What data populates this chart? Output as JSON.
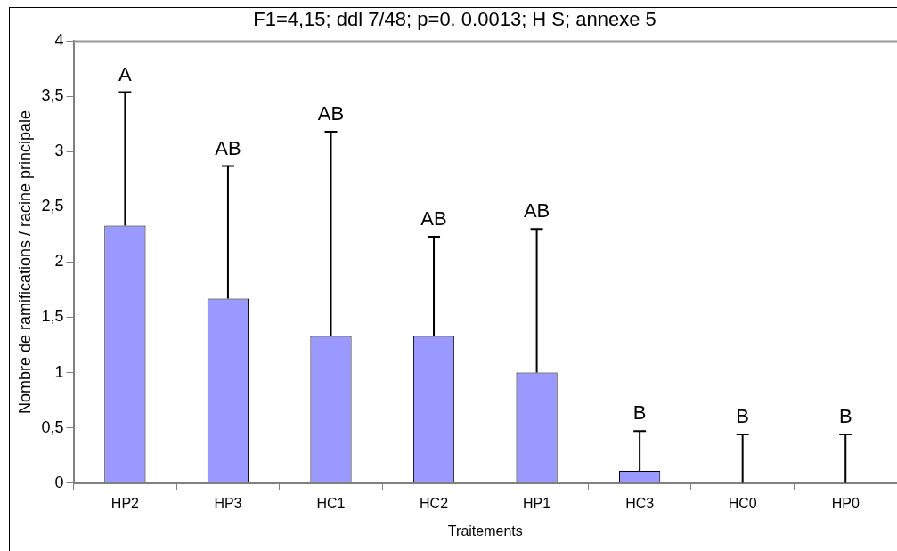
{
  "chart_data": {
    "type": "bar",
    "title": "F1=4,15; ddl 7/48; p=0. 0.0013; H S; annexe 5",
    "xlabel": "Traitements",
    "ylabel": "Nombre de ramifications / racine principale",
    "categories": [
      "HP2",
      "HP3",
      "HC1",
      "HC2",
      "HP1",
      "HC3",
      "HC0",
      "HP0"
    ],
    "values": [
      2.33,
      1.67,
      1.33,
      1.33,
      1.0,
      0.11,
      0,
      0
    ],
    "errors": [
      [
        2.33,
        3.54
      ],
      [
        1.67,
        2.87
      ],
      [
        1.33,
        3.18
      ],
      [
        1.33,
        2.23
      ],
      [
        1.0,
        2.3
      ],
      [
        0.11,
        0.47
      ],
      [
        0,
        0.44
      ],
      [
        0,
        0.44
      ]
    ],
    "color": "#9999ff",
    "ylim": [
      0,
      4
    ],
    "yticks": [
      0,
      {
        "value": 0.5,
        "label": "0,5"
      },
      1,
      {
        "value": 1.5,
        "label": "1,5"
      },
      2,
      {
        "value": 2.5,
        "label": "2,5"
      },
      3,
      {
        "value": 3.5,
        "label": "3,5"
      },
      4
    ],
    "annotations": [
      {
        "text": "A",
        "x": "HP2",
        "y": 3.54
      },
      {
        "text": "AB",
        "x": "HP3",
        "y": 2.87
      },
      {
        "text": "AB",
        "x": "HC1",
        "y": 3.18
      },
      {
        "text": "AB",
        "x": "HC2",
        "y": 2.23
      },
      {
        "text": "AB",
        "x": "HP1",
        "y": 2.3
      },
      {
        "text": "B",
        "x": "HC3",
        "y": 0.47
      },
      {
        "text": "B",
        "x": "HC0",
        "y": 0.44
      },
      {
        "text": "B",
        "x": "HP0",
        "y": 0.44
      }
    ],
    "grid": false,
    "legend": false
  }
}
